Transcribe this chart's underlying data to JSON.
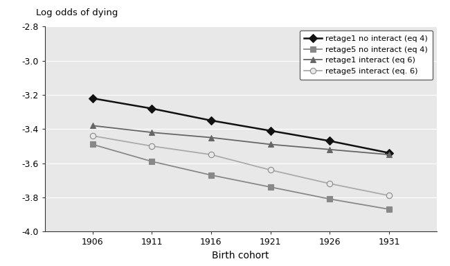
{
  "x": [
    1906,
    1911,
    1916,
    1921,
    1926,
    1931
  ],
  "series": [
    {
      "label": "retage1 no interact (eq 4)",
      "values": [
        -3.22,
        -3.28,
        -3.35,
        -3.41,
        -3.47,
        -3.54
      ],
      "color": "#111111",
      "linewidth": 1.8,
      "marker": "D",
      "markersize": 6,
      "markerfacecolor": "#111111",
      "markeredgecolor": "#111111",
      "linestyle": "-"
    },
    {
      "label": "retage5 no interact (eq 4)",
      "values": [
        -3.49,
        -3.59,
        -3.67,
        -3.74,
        -3.81,
        -3.87
      ],
      "color": "#888888",
      "linewidth": 1.3,
      "marker": "s",
      "markersize": 6,
      "markerfacecolor": "#888888",
      "markeredgecolor": "#888888",
      "linestyle": "-"
    },
    {
      "label": "retage1 interact (eq 6)",
      "values": [
        -3.38,
        -3.42,
        -3.45,
        -3.49,
        -3.52,
        -3.55
      ],
      "color": "#666666",
      "linewidth": 1.3,
      "marker": "^",
      "markersize": 6,
      "markerfacecolor": "#666666",
      "markeredgecolor": "#666666",
      "linestyle": "-"
    },
    {
      "label": "retage5 interact (eq. 6)",
      "values": [
        -3.44,
        -3.5,
        -3.55,
        -3.64,
        -3.72,
        -3.79
      ],
      "color": "#aaaaaa",
      "linewidth": 1.3,
      "marker": "o",
      "markersize": 6,
      "markerfacecolor": "#e8e8e8",
      "markeredgecolor": "#888888",
      "linestyle": "-"
    }
  ],
  "ylabel_text": "Log odds of dying",
  "xlabel": "Birth cohort",
  "ylim": [
    -4.0,
    -2.8
  ],
  "yticks": [
    -4.0,
    -3.8,
    -3.6,
    -3.4,
    -3.2,
    -3.0,
    -2.8
  ],
  "xticks": [
    1906,
    1911,
    1916,
    1921,
    1926,
    1931
  ],
  "plot_bg": "#e8e8e8",
  "fig_bg": "#ffffff",
  "grid_color": "#ffffff",
  "legend_loc": "upper right",
  "xlim": [
    1902,
    1935
  ]
}
